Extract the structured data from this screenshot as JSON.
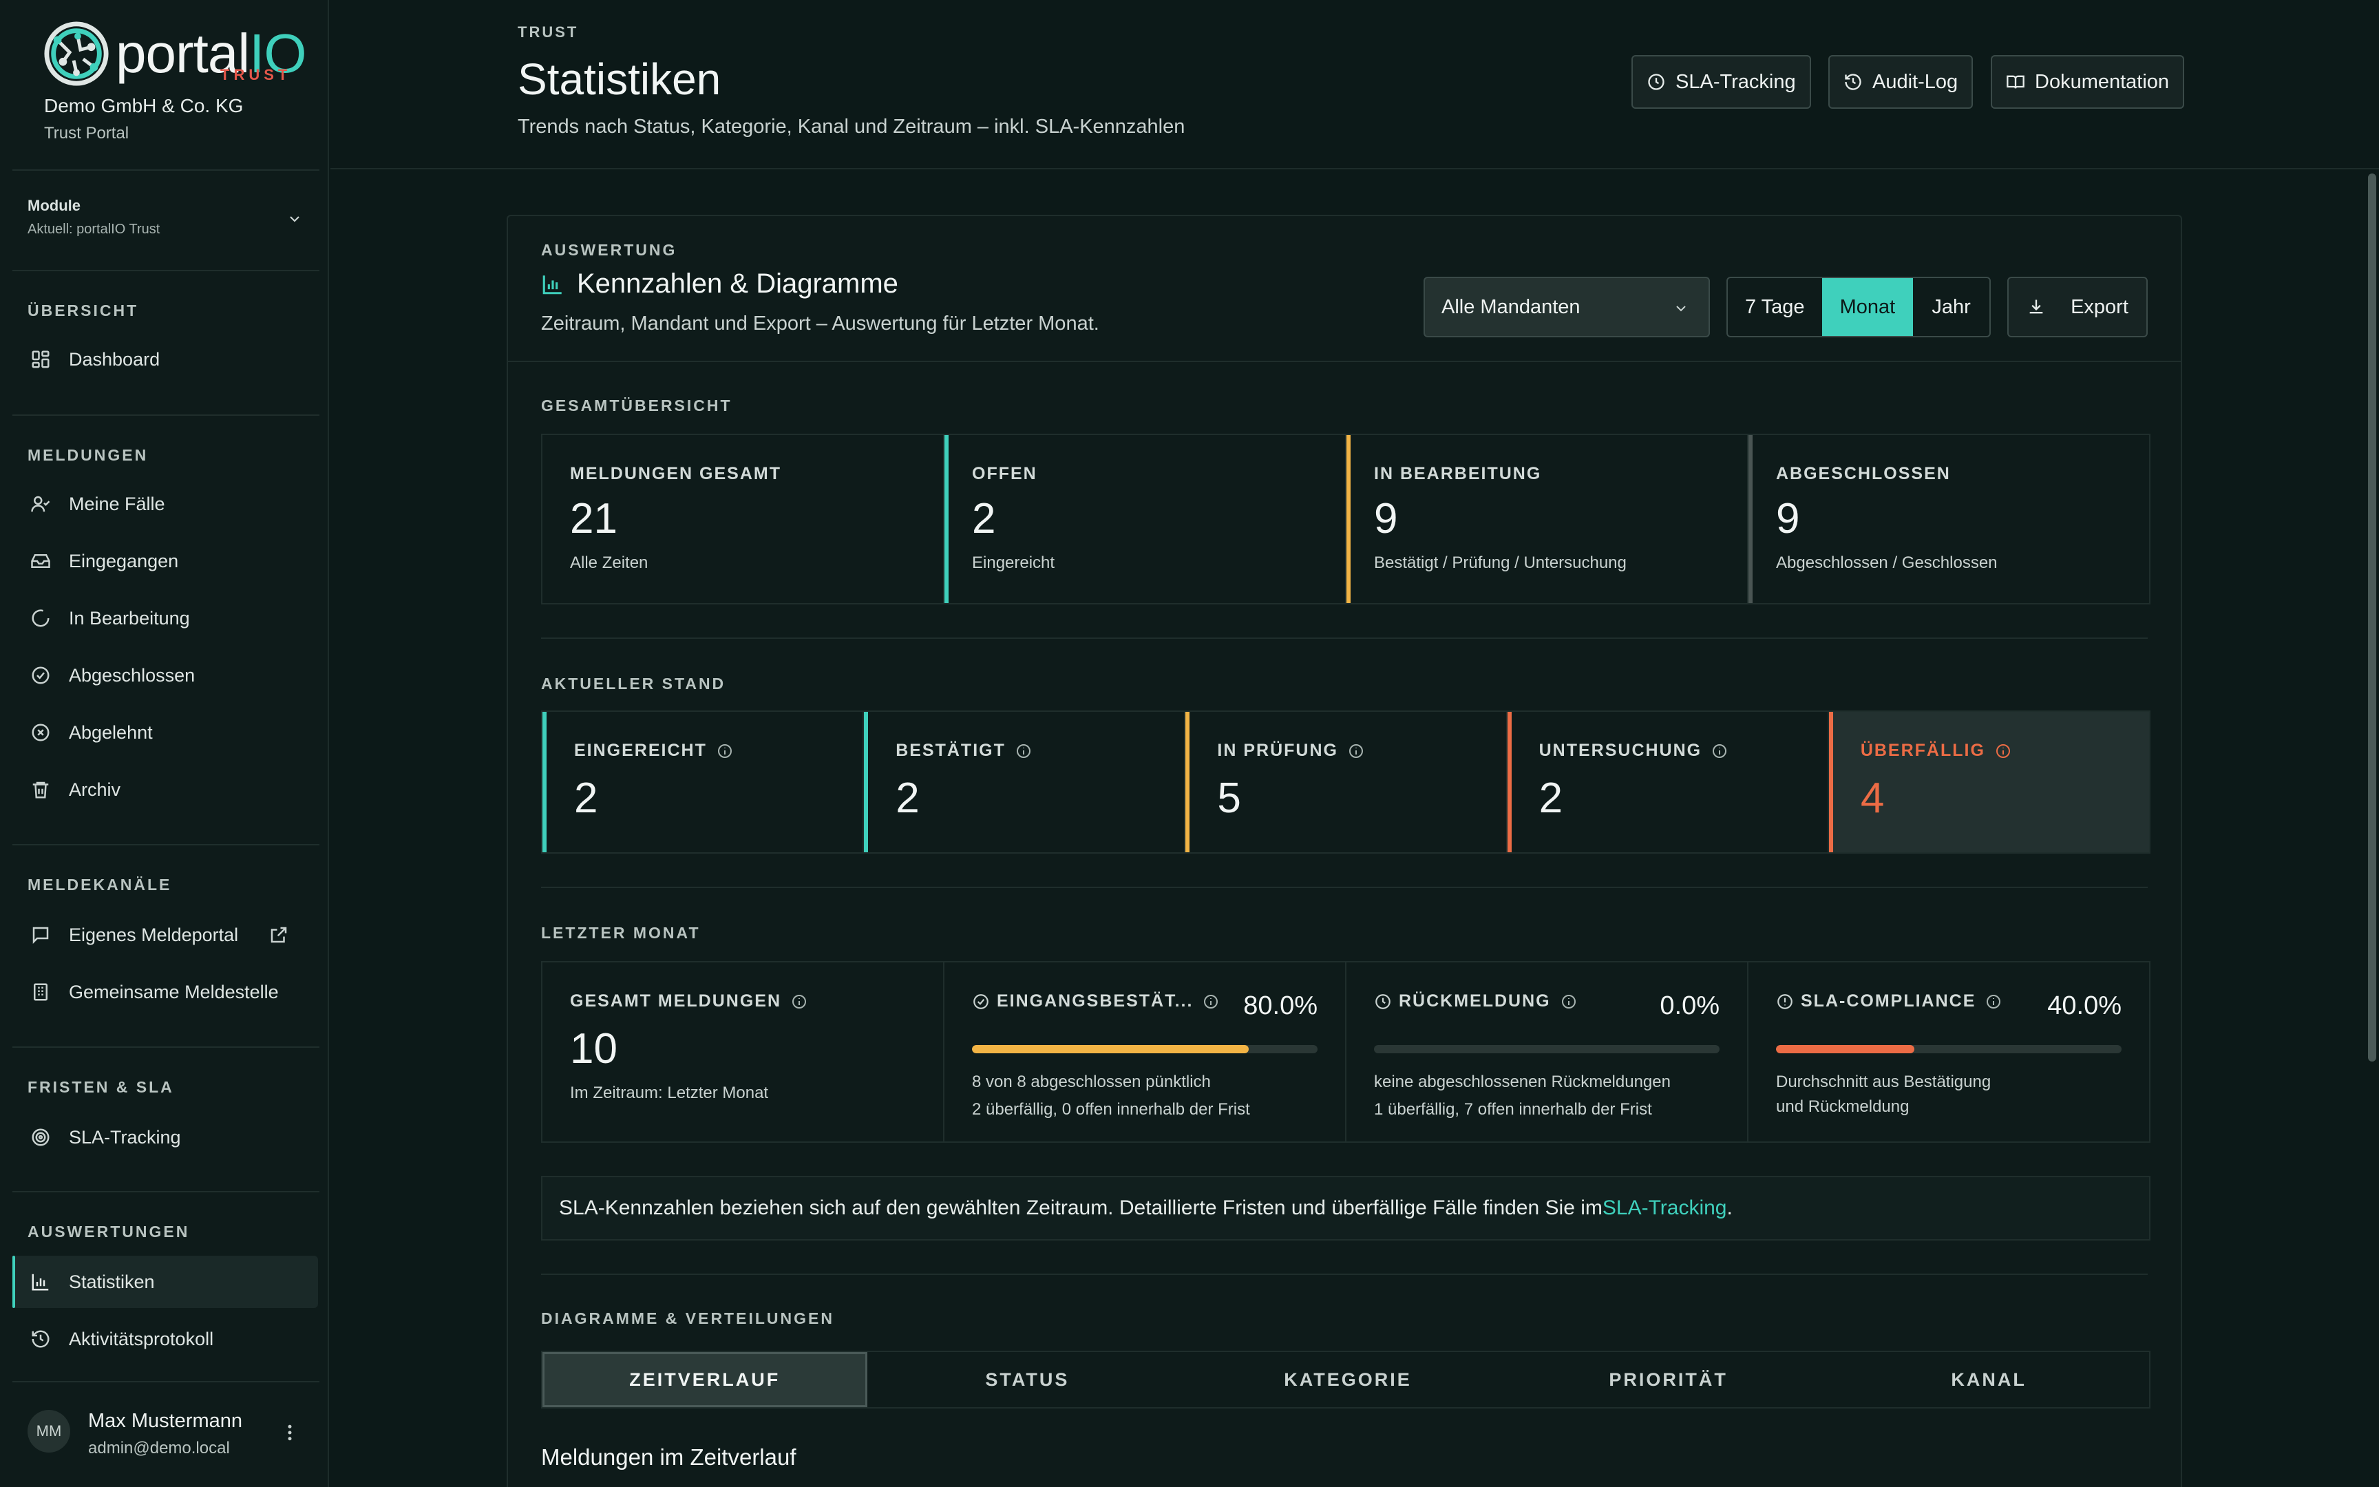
{
  "brand": {
    "logo_word": "portal",
    "logo_io": "IO",
    "logo_sub": "TRUST",
    "org_name": "Demo GmbH & Co. KG",
    "org_sub": "Trust Portal"
  },
  "module": {
    "label": "Module",
    "current": "Aktuell: portalIO Trust"
  },
  "sidebar": {
    "sections": [
      {
        "title": "ÜBERSICHT",
        "items": [
          {
            "label": "Dashboard",
            "icon": "dashboard-icon"
          }
        ]
      },
      {
        "title": "MELDUNGEN",
        "items": [
          {
            "label": "Meine Fälle",
            "icon": "user-check-icon"
          },
          {
            "label": "Eingegangen",
            "icon": "inbox-icon"
          },
          {
            "label": "In Bearbeitung",
            "icon": "loading-icon"
          },
          {
            "label": "Abgeschlossen",
            "icon": "check-circle-icon"
          },
          {
            "label": "Abgelehnt",
            "icon": "x-circle-icon"
          },
          {
            "label": "Archiv",
            "icon": "trash-icon"
          }
        ]
      },
      {
        "title": "MELDEKANÄLE",
        "items": [
          {
            "label": "Eigenes Meldeportal",
            "icon": "message-icon"
          },
          {
            "label": "Gemeinsame Meldestelle",
            "icon": "building-icon"
          }
        ]
      },
      {
        "title": "FRISTEN & SLA",
        "items": [
          {
            "label": "SLA-Tracking",
            "icon": "target-icon"
          }
        ]
      },
      {
        "title": "AUSWERTUNGEN",
        "items": [
          {
            "label": "Statistiken",
            "icon": "bar-chart-icon",
            "active": true
          },
          {
            "label": "Aktivitätsprotokoll",
            "icon": "history-icon"
          }
        ]
      }
    ]
  },
  "user": {
    "initials": "MM",
    "name": "Max Mustermann",
    "email": "admin@demo.local"
  },
  "header": {
    "kicker": "TRUST",
    "title": "Statistiken",
    "subtitle": "Trends nach Status, Kategorie, Kanal und Zeitraum – inkl. SLA-Kennzahlen",
    "buttons": {
      "sla": "SLA-Tracking",
      "audit": "Audit-Log",
      "docs": "Dokumentation"
    }
  },
  "panel": {
    "kicker": "AUSWERTUNG",
    "title": "Kennzahlen & Diagramme",
    "subtitle": "Zeitraum, Mandant und Export – Auswertung für Letzter Monat.",
    "tenant_select": "Alle Mandanten",
    "periods": [
      "7 Tage",
      "Monat",
      "Jahr"
    ],
    "active_period": "Monat",
    "export": "Export"
  },
  "overview": {
    "title": "GESAMTÜBERSICHT",
    "cards": [
      {
        "label": "MELDUNGEN GESAMT",
        "value": "21",
        "sub": "Alle Zeiten"
      },
      {
        "label": "OFFEN",
        "value": "2",
        "sub": "Eingereicht"
      },
      {
        "label": "IN BEARBEITUNG",
        "value": "9",
        "sub": "Bestätigt / Prüfung / Untersuchung"
      },
      {
        "label": "ABGESCHLOSSEN",
        "value": "9",
        "sub": "Abgeschlossen / Geschlossen"
      }
    ]
  },
  "current": {
    "title": "AKTUELLER STAND",
    "cards": [
      {
        "label": "EINGEREICHT",
        "value": "2"
      },
      {
        "label": "BESTÄTIGT",
        "value": "2"
      },
      {
        "label": "IN PRÜFUNG",
        "value": "5"
      },
      {
        "label": "UNTERSUCHUNG",
        "value": "2"
      },
      {
        "label": "ÜBERFÄLLIG",
        "value": "4"
      }
    ]
  },
  "last_month": {
    "title": "LETZTER MONAT",
    "total": {
      "label": "GESAMT MELDUNGEN",
      "value": "10",
      "sub": "Im Zeitraum: Letzter Monat"
    },
    "ack": {
      "label": "EINGANGSBESTÄT...",
      "pct": "80.0%",
      "fraction": 0.8,
      "line1": "8 von 8 abgeschlossen pünktlich",
      "line2": "2 überfällig, 0 offen innerhalb der Frist"
    },
    "feedback": {
      "label": "RÜCKMELDUNG",
      "pct": "0.0%",
      "fraction": 0.0,
      "line1": "keine abgeschlossenen Rückmeldungen",
      "line2": "1 überfällig, 7 offen innerhalb der Frist"
    },
    "sla": {
      "label": "SLA-COMPLIANCE",
      "pct": "40.0%",
      "fraction": 0.4,
      "line1": "Durchschnitt aus Bestätigung",
      "line2": "und Rückmeldung"
    }
  },
  "note": {
    "text": "SLA-Kennzahlen beziehen sich auf den gewählten Zeitraum. Detaillierte Fristen und überfällige Fälle finden Sie im ",
    "link": "SLA-Tracking",
    "end": "."
  },
  "charts": {
    "title": "DIAGRAMME & VERTEILUNGEN",
    "tabs": [
      "ZEITVERLAUF",
      "STATUS",
      "KATEGORIE",
      "PRIORITÄT",
      "KANAL"
    ],
    "active_tab": "ZEITVERLAUF",
    "heading": "Meldungen im Zeitverlauf"
  },
  "colors": {
    "accent": "#3fd0bc",
    "amber": "#f2b445",
    "orange": "#ec6c45",
    "grey": "#4a5553"
  }
}
